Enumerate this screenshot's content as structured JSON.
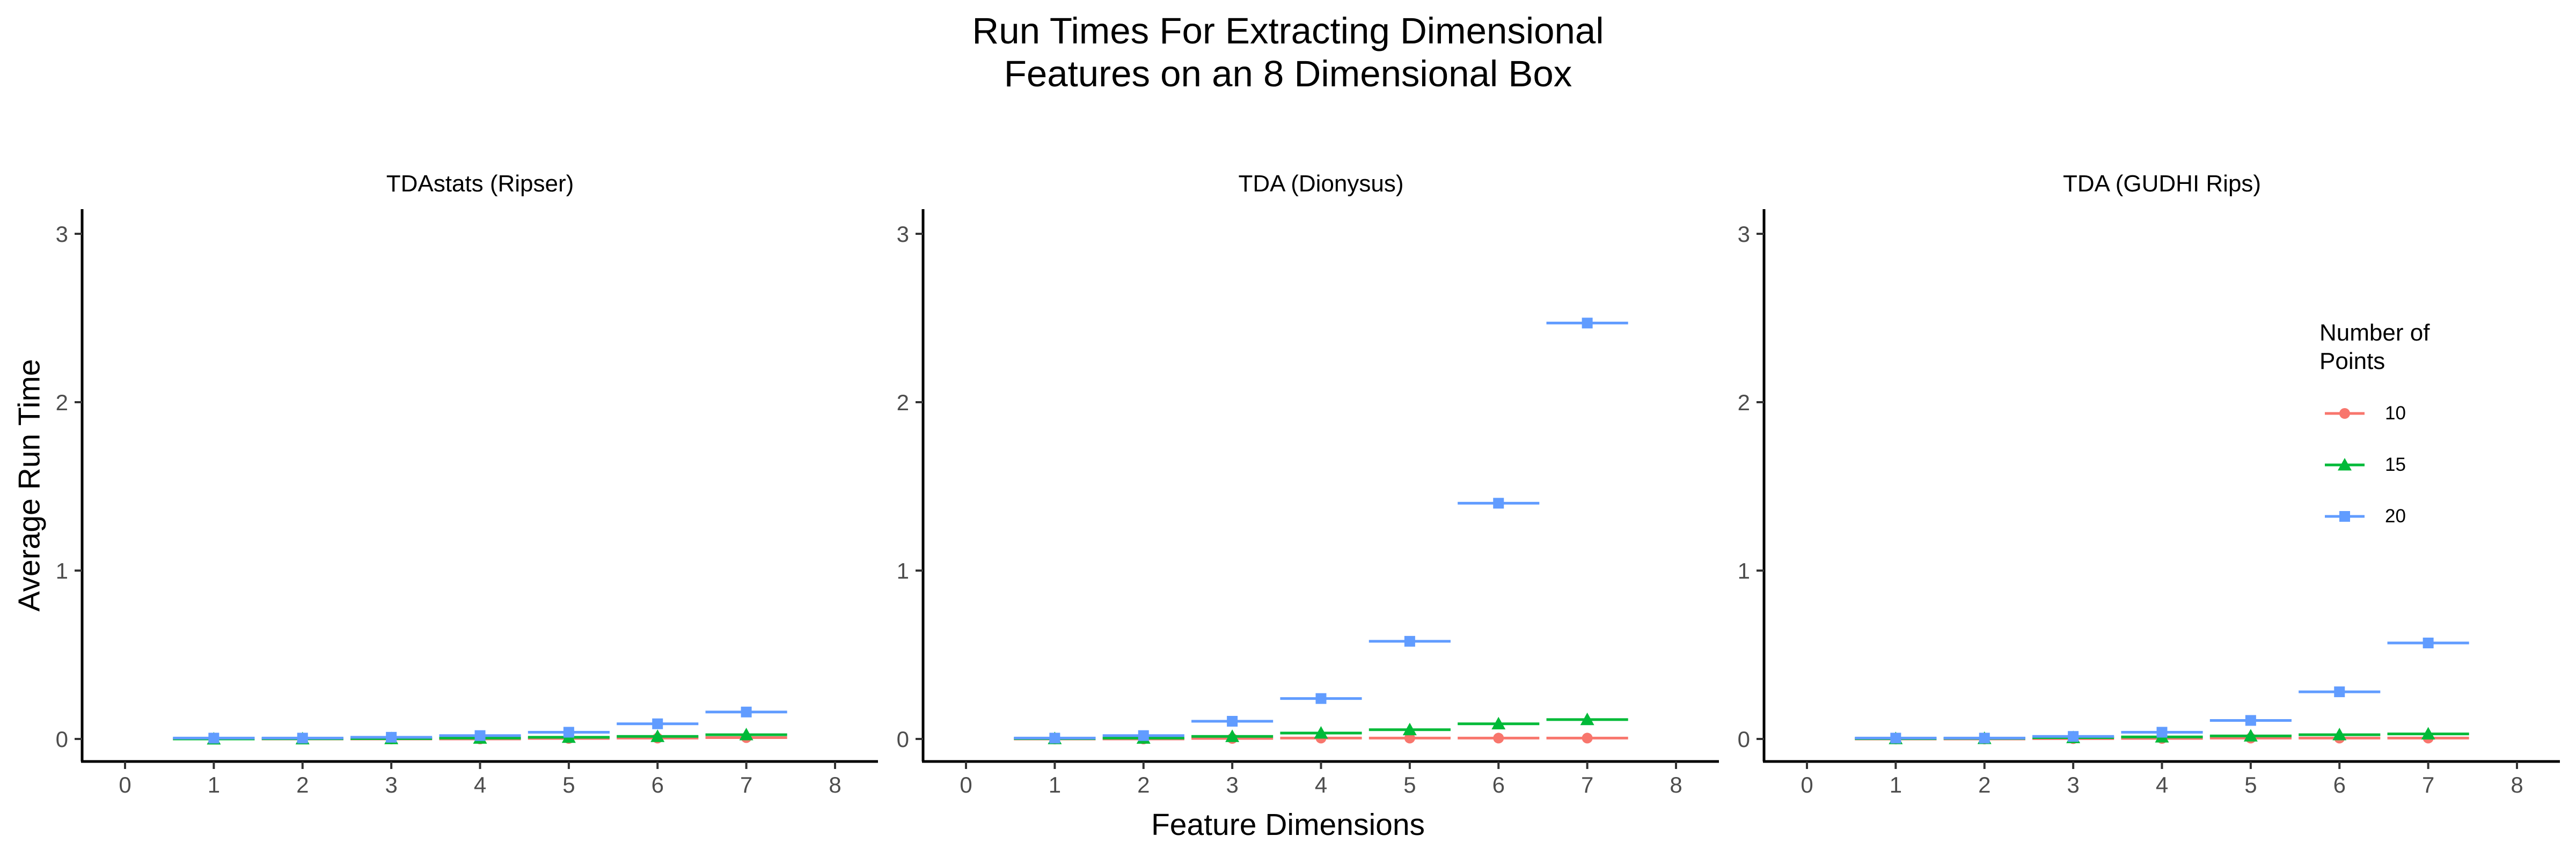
{
  "chart_data": {
    "type": "scatter",
    "title_lines": [
      "Run Times For Extracting Dimensional",
      "Features on an 8 Dimensional Box"
    ],
    "xlabel": "Feature Dimensions",
    "ylabel": "Average Run Time",
    "xlim": [
      0,
      8
    ],
    "ylim": [
      0,
      3
    ],
    "x_ticks": [
      "0",
      "1",
      "2",
      "3",
      "4",
      "5",
      "6",
      "7",
      "8"
    ],
    "y_ticks": [
      "0",
      "1",
      "2",
      "3"
    ],
    "grid": false,
    "legend": {
      "title_lines": [
        "Number of",
        "Points"
      ],
      "placement": "right (inside third panel)",
      "entries": [
        {
          "label": "10",
          "color": "#F8766D",
          "shape": "circle"
        },
        {
          "label": "15",
          "color": "#00BA38",
          "shape": "triangle"
        },
        {
          "label": "20",
          "color": "#619CFF",
          "shape": "square"
        }
      ]
    },
    "x": [
      1,
      2,
      3,
      4,
      5,
      6,
      7
    ],
    "panels": [
      {
        "title": "TDAstats (Ripser)",
        "series": [
          {
            "name": "10",
            "values": [
              0.0,
              0.0,
              0.0,
              0.0,
              0.003,
              0.005,
              0.008
            ]
          },
          {
            "name": "15",
            "values": [
              0.0,
              0.001,
              0.002,
              0.005,
              0.01,
              0.015,
              0.025
            ]
          },
          {
            "name": "20",
            "values": [
              0.005,
              0.005,
              0.01,
              0.02,
              0.04,
              0.09,
              0.16
            ]
          }
        ]
      },
      {
        "title": "TDA (Dionysus)",
        "series": [
          {
            "name": "10",
            "values": [
              0.0,
              0.0,
              0.003,
              0.005,
              0.005,
              0.005,
              0.005
            ]
          },
          {
            "name": "15",
            "values": [
              0.002,
              0.005,
              0.015,
              0.035,
              0.055,
              0.09,
              0.115
            ]
          },
          {
            "name": "20",
            "values": [
              0.005,
              0.02,
              0.105,
              0.24,
              0.58,
              1.4,
              2.47
            ]
          }
        ]
      },
      {
        "title": "TDA (GUDHI Rips)",
        "series": [
          {
            "name": "10",
            "values": [
              0.0,
              0.0,
              0.002,
              0.003,
              0.005,
              0.005,
              0.005
            ]
          },
          {
            "name": "15",
            "values": [
              0.002,
              0.003,
              0.008,
              0.012,
              0.018,
              0.025,
              0.03
            ]
          },
          {
            "name": "20",
            "values": [
              0.005,
              0.005,
              0.015,
              0.04,
              0.11,
              0.28,
              0.57
            ]
          }
        ]
      }
    ]
  }
}
